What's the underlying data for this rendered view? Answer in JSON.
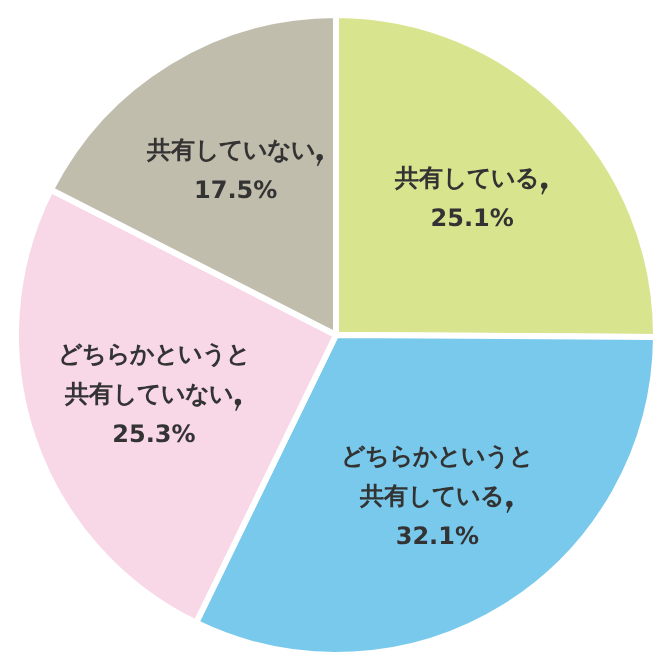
{
  "chart_data": {
    "type": "pie",
    "categories": [
      "共有している",
      "どちらかというと共有している",
      "どちらかというと共有していない",
      "共有していない"
    ],
    "values": [
      25.1,
      32.1,
      25.3,
      17.5
    ],
    "value_labels": [
      "25.1%",
      "32.1%",
      "25.3%",
      "17.5%"
    ],
    "colors": [
      "#d9e48f",
      "#78c9eb",
      "#f8d7e7",
      "#c1bdad"
    ],
    "legend": false
  }
}
